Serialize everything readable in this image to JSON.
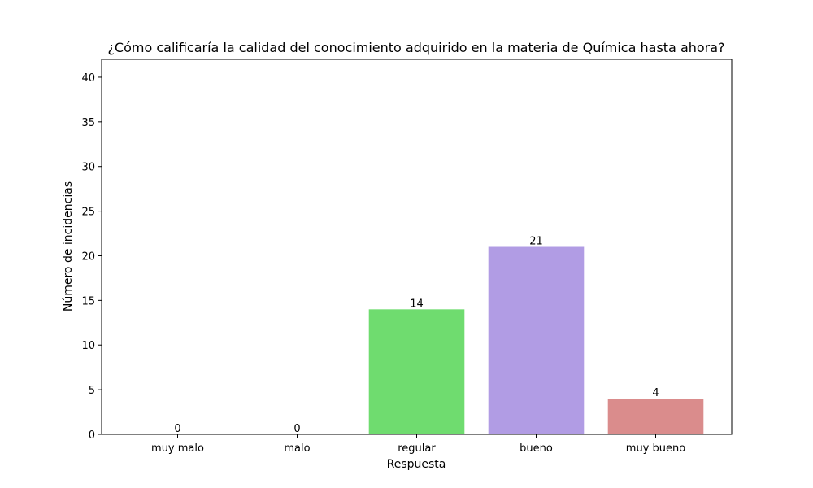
{
  "chart_data": {
    "type": "bar",
    "title": "¿Cómo calificaría la calidad del conocimiento adquirido en la materia de Química hasta ahora?",
    "xlabel": "Respuesta",
    "ylabel": "Número de incidencias",
    "categories": [
      "muy malo",
      "malo",
      "regular",
      "bueno",
      "muy bueno"
    ],
    "values": [
      0,
      0,
      14,
      21,
      4
    ],
    "data_labels": [
      "0",
      "0",
      "14",
      "21",
      "4"
    ],
    "colors": [
      "#5fa8e0",
      "#f0a050",
      "#6fdc6f",
      "#b19ce4",
      "#da8c8c"
    ],
    "ylim": [
      0,
      42
    ],
    "yticks": [
      0,
      5,
      10,
      15,
      20,
      25,
      30,
      35,
      40
    ],
    "grid": false,
    "legend": "none"
  }
}
